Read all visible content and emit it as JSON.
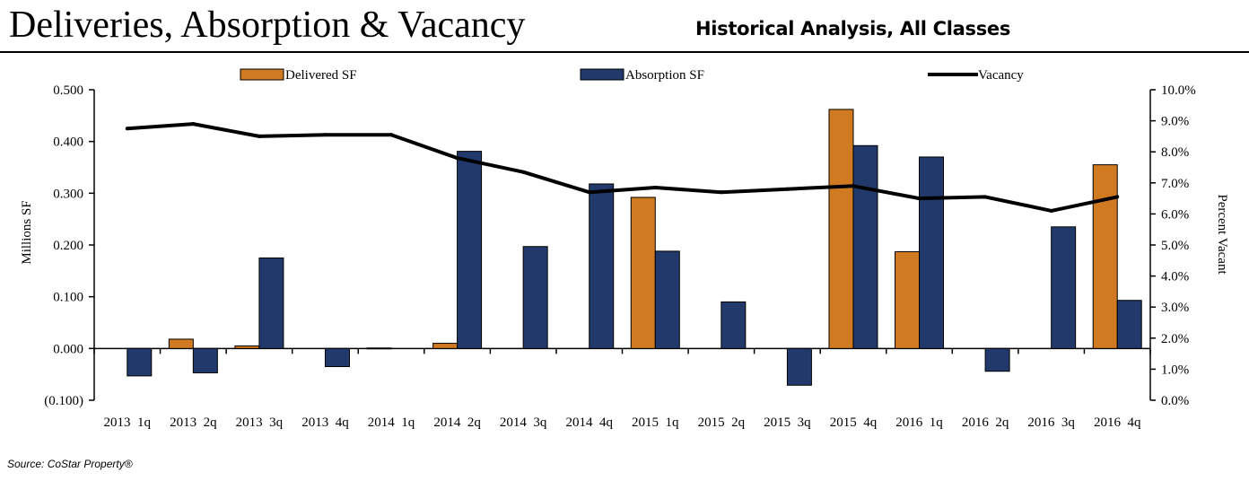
{
  "header": {
    "title": "Deliveries, Absorption & Vacancy",
    "subtitle": "Historical Analysis, All Classes"
  },
  "source": "Source: CoStar Property®",
  "chart_data": {
    "type": "bar",
    "categories": [
      "2013 1q",
      "2013 2q",
      "2013 3q",
      "2013 4q",
      "2014 1q",
      "2014 2q",
      "2014 3q",
      "2014 4q",
      "2015 1q",
      "2015 2q",
      "2015 3q",
      "2015 4q",
      "2016 1q",
      "2016 2q",
      "2016 3q",
      "2016 4q"
    ],
    "series": [
      {
        "name": "Delivered SF",
        "axis": "left",
        "color": "#D07A22",
        "values": [
          0.0,
          0.018,
          0.005,
          0.0,
          0.001,
          0.01,
          0.0,
          0.0,
          0.292,
          0.0,
          0.0,
          0.462,
          0.187,
          0.0,
          0.0,
          0.355
        ]
      },
      {
        "name": "Absorption SF",
        "axis": "left",
        "color": "#223A6B",
        "values": [
          -0.053,
          -0.047,
          0.175,
          -0.035,
          0.0,
          0.381,
          0.197,
          0.318,
          0.188,
          0.09,
          -0.071,
          0.392,
          0.37,
          -0.044,
          0.235,
          0.093
        ]
      },
      {
        "name": "Vacancy",
        "axis": "right",
        "type": "line",
        "color": "#000000",
        "values": [
          8.75,
          8.9,
          8.5,
          8.55,
          8.55,
          7.8,
          7.35,
          6.7,
          6.85,
          6.7,
          6.8,
          6.9,
          6.5,
          6.55,
          6.1,
          6.55
        ]
      }
    ],
    "ylabel": "Millions SF",
    "y2label": "Percent Vacant",
    "ylim": [
      -0.1,
      0.5
    ],
    "y2lim": [
      0,
      10
    ],
    "yticks": [
      "0.500",
      "0.400",
      "0.300",
      "0.200",
      "0.100",
      "0.000",
      "(0.100)"
    ],
    "y2ticks": [
      "10.0%",
      "9.0%",
      "8.0%",
      "7.0%",
      "6.0%",
      "5.0%",
      "4.0%",
      "3.0%",
      "2.0%",
      "1.0%",
      "0.0%"
    ],
    "legend_position": "top",
    "grid": false
  }
}
